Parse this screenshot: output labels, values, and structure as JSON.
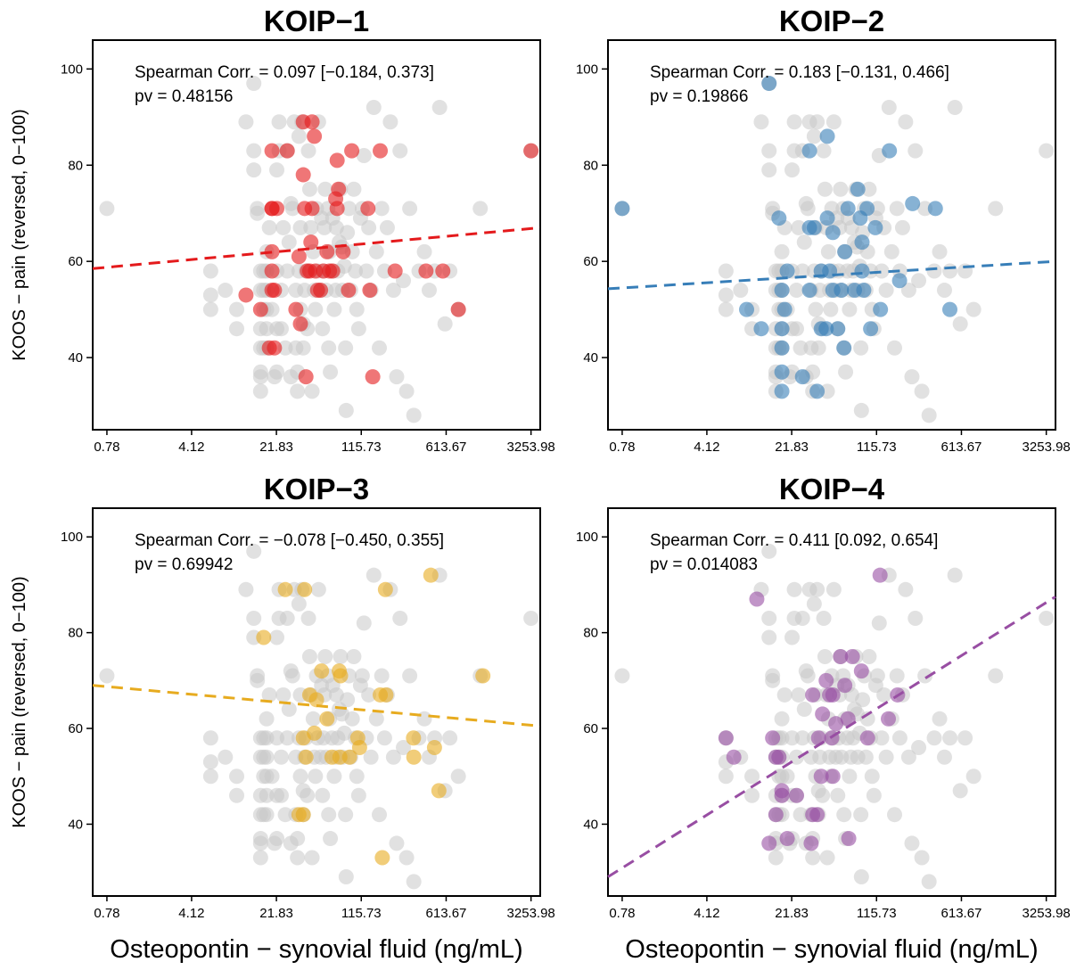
{
  "chart_data": [
    {
      "type": "scatter",
      "title": "KOIP−1",
      "color": "#e41a1c",
      "annotation": {
        "corr": "Spearman Corr. = 0.097 [−0.184, 0.373]",
        "pv": "pv = 0.48156"
      },
      "highlight": [
        [
          12,
          53
        ],
        [
          16,
          50
        ],
        [
          19,
          42
        ],
        [
          20,
          54
        ],
        [
          20,
          71
        ],
        [
          21,
          54
        ],
        [
          20,
          58
        ],
        [
          20,
          62
        ],
        [
          20,
          71
        ],
        [
          21,
          42
        ],
        [
          22,
          71
        ],
        [
          20,
          83
        ],
        [
          27,
          83
        ],
        [
          32,
          50
        ],
        [
          34,
          61
        ],
        [
          35,
          47
        ],
        [
          37,
          78
        ],
        [
          37,
          89
        ],
        [
          38,
          71
        ],
        [
          40,
          58
        ],
        [
          39,
          36
        ],
        [
          42,
          58
        ],
        [
          43,
          64
        ],
        [
          44,
          71
        ],
        [
          44,
          89
        ],
        [
          46,
          86
        ],
        [
          47,
          58
        ],
        [
          49,
          54
        ],
        [
          52,
          54
        ],
        [
          55,
          58
        ],
        [
          59,
          62
        ],
        [
          62,
          58
        ],
        [
          66,
          58
        ],
        [
          70,
          73
        ],
        [
          72,
          71
        ],
        [
          74,
          75
        ],
        [
          72,
          81
        ],
        [
          81,
          62
        ],
        [
          90,
          54
        ],
        [
          96,
          83
        ],
        [
          132,
          71
        ],
        [
          137,
          54
        ],
        [
          145,
          36
        ],
        [
          168,
          83
        ],
        [
          225,
          58
        ],
        [
          413,
          58
        ],
        [
          575,
          58
        ],
        [
          780,
          50
        ],
        [
          3253,
          83
        ]
      ]
    },
    {
      "type": "scatter",
      "title": "KOIP−2",
      "color": "#377eb8",
      "annotation": {
        "corr": "Spearman Corr. = 0.183 [−0.131, 0.466]",
        "pv": "pv = 0.19866"
      },
      "highlight": [
        [
          0.78,
          71
        ],
        [
          9,
          50
        ],
        [
          12,
          46
        ],
        [
          14,
          97
        ],
        [
          17,
          69
        ],
        [
          18,
          54
        ],
        [
          18,
          42
        ],
        [
          18,
          46
        ],
        [
          18,
          37
        ],
        [
          18,
          33
        ],
        [
          19,
          50
        ],
        [
          20,
          58
        ],
        [
          27,
          36
        ],
        [
          31,
          83
        ],
        [
          31,
          67
        ],
        [
          31,
          54
        ],
        [
          34,
          67
        ],
        [
          36,
          33
        ],
        [
          39,
          58
        ],
        [
          39,
          46
        ],
        [
          43,
          46
        ],
        [
          44,
          69
        ],
        [
          44,
          86
        ],
        [
          46,
          58
        ],
        [
          49,
          54
        ],
        [
          49,
          66
        ],
        [
          54,
          46
        ],
        [
          58,
          54
        ],
        [
          61,
          42
        ],
        [
          62,
          62
        ],
        [
          66,
          71
        ],
        [
          75,
          54
        ],
        [
          80,
          75
        ],
        [
          84,
          69
        ],
        [
          87,
          58
        ],
        [
          87,
          64
        ],
        [
          90,
          54
        ],
        [
          96,
          71
        ],
        [
          103,
          46
        ],
        [
          113,
          67
        ],
        [
          125,
          50
        ],
        [
          149,
          83
        ],
        [
          182,
          56
        ],
        [
          235,
          72
        ],
        [
          368,
          71
        ],
        [
          489,
          50
        ]
      ]
    },
    {
      "type": "scatter",
      "title": "KOIP−3",
      "color": "#e7ab1f",
      "annotation": {
        "corr": "Spearman Corr. = −0.078 [−0.450, 0.355]",
        "pv": "pv = 0.69942"
      },
      "highlight": [
        [
          17,
          79
        ],
        [
          26,
          89
        ],
        [
          34,
          42
        ],
        [
          37,
          42
        ],
        [
          37,
          58
        ],
        [
          38,
          89
        ],
        [
          39,
          54
        ],
        [
          42,
          67
        ],
        [
          46,
          59
        ],
        [
          48,
          66
        ],
        [
          53,
          72
        ],
        [
          59,
          62
        ],
        [
          65,
          54
        ],
        [
          75,
          72
        ],
        [
          76,
          54
        ],
        [
          77,
          71
        ],
        [
          92,
          54
        ],
        [
          108,
          58
        ],
        [
          112,
          56
        ],
        [
          168,
          67
        ],
        [
          175,
          33
        ],
        [
          186,
          89
        ],
        [
          188,
          67
        ],
        [
          323,
          58
        ],
        [
          325,
          54
        ],
        [
          454,
          92
        ],
        [
          488,
          56
        ],
        [
          532,
          47
        ],
        [
          1264,
          71
        ]
      ]
    },
    {
      "type": "scatter",
      "title": "KOIP−4",
      "color": "#984ea3",
      "annotation": {
        "corr": "Spearman Corr. = 0.411 [0.092, 0.654]",
        "pv": "pv = 0.014083"
      },
      "highlight": [
        [
          6,
          58
        ],
        [
          7,
          54
        ],
        [
          11,
          87
        ],
        [
          14,
          36
        ],
        [
          15,
          58
        ],
        [
          16,
          54
        ],
        [
          16,
          42
        ],
        [
          17,
          54
        ],
        [
          18,
          47
        ],
        [
          18,
          46
        ],
        [
          20,
          37
        ],
        [
          24,
          46
        ],
        [
          32,
          36
        ],
        [
          33,
          67
        ],
        [
          33,
          42
        ],
        [
          36,
          42
        ],
        [
          37,
          58
        ],
        [
          39,
          50
        ],
        [
          40,
          63
        ],
        [
          43,
          70
        ],
        [
          46,
          67
        ],
        [
          48,
          58
        ],
        [
          49,
          67
        ],
        [
          49,
          50
        ],
        [
          52,
          61
        ],
        [
          57,
          75
        ],
        [
          62,
          69
        ],
        [
          66,
          62
        ],
        [
          67,
          37
        ],
        [
          72,
          75
        ],
        [
          86,
          72
        ],
        [
          97,
          58
        ],
        [
          124,
          92
        ],
        [
          146,
          62
        ],
        [
          175,
          67
        ]
      ]
    }
  ],
  "background_points": [
    [
      0.78,
      71
    ],
    [
      6,
      58
    ],
    [
      6,
      53
    ],
    [
      6,
      50
    ],
    [
      8,
      54
    ],
    [
      10,
      46
    ],
    [
      10,
      50
    ],
    [
      12,
      89
    ],
    [
      14,
      97
    ],
    [
      14,
      79
    ],
    [
      14,
      83
    ],
    [
      15,
      71
    ],
    [
      15,
      70
    ],
    [
      16,
      58
    ],
    [
      16,
      54
    ],
    [
      16,
      46
    ],
    [
      16,
      42
    ],
    [
      16,
      37
    ],
    [
      16,
      36
    ],
    [
      16,
      33
    ],
    [
      17,
      58
    ],
    [
      17,
      54
    ],
    [
      17,
      50
    ],
    [
      17,
      42
    ],
    [
      18,
      62
    ],
    [
      18,
      58
    ],
    [
      18,
      54
    ],
    [
      18,
      50
    ],
    [
      18,
      46
    ],
    [
      18,
      42
    ],
    [
      19,
      67
    ],
    [
      20,
      50
    ],
    [
      21,
      36
    ],
    [
      22,
      37
    ],
    [
      22,
      46
    ],
    [
      22,
      58
    ],
    [
      22,
      79
    ],
    [
      23,
      83
    ],
    [
      23,
      89
    ],
    [
      24,
      54
    ],
    [
      24,
      46
    ],
    [
      25,
      67
    ],
    [
      26,
      42
    ],
    [
      27,
      58
    ],
    [
      27,
      83
    ],
    [
      28,
      64
    ],
    [
      29,
      36
    ],
    [
      29,
      72
    ],
    [
      30,
      71
    ],
    [
      31,
      89
    ],
    [
      32,
      54
    ],
    [
      32,
      42
    ],
    [
      33,
      37
    ],
    [
      33,
      33
    ],
    [
      34,
      58
    ],
    [
      34,
      86
    ],
    [
      35,
      50
    ],
    [
      35,
      67
    ],
    [
      36,
      89
    ],
    [
      37,
      42
    ],
    [
      37,
      47
    ],
    [
      38,
      54
    ],
    [
      39,
      58
    ],
    [
      40,
      46
    ],
    [
      41,
      83
    ],
    [
      42,
      75
    ],
    [
      43,
      67
    ],
    [
      44,
      33
    ],
    [
      45,
      62
    ],
    [
      46,
      54
    ],
    [
      47,
      50
    ],
    [
      48,
      71
    ],
    [
      49,
      58
    ],
    [
      50,
      89
    ],
    [
      52,
      54
    ],
    [
      53,
      69
    ],
    [
      54,
      46
    ],
    [
      55,
      58
    ],
    [
      56,
      67
    ],
    [
      57,
      75
    ],
    [
      58,
      54
    ],
    [
      60,
      71
    ],
    [
      61,
      42
    ],
    [
      62,
      62
    ],
    [
      63,
      37
    ],
    [
      65,
      58
    ],
    [
      66,
      69
    ],
    [
      68,
      50
    ],
    [
      70,
      54
    ],
    [
      71,
      67
    ],
    [
      73,
      58
    ],
    [
      75,
      64
    ],
    [
      77,
      75
    ],
    [
      79,
      63
    ],
    [
      80,
      54
    ],
    [
      83,
      59
    ],
    [
      85,
      42
    ],
    [
      86,
      29
    ],
    [
      88,
      66
    ],
    [
      91,
      71
    ],
    [
      94,
      54
    ],
    [
      97,
      62
    ],
    [
      100,
      75
    ],
    [
      103,
      58
    ],
    [
      106,
      50
    ],
    [
      110,
      46
    ],
    [
      114,
      69
    ],
    [
      118,
      71
    ],
    [
      122,
      82
    ],
    [
      128,
      58
    ],
    [
      134,
      67
    ],
    [
      140,
      54
    ],
    [
      148,
      92
    ],
    [
      156,
      62
    ],
    [
      165,
      42
    ],
    [
      173,
      71
    ],
    [
      183,
      58
    ],
    [
      193,
      67
    ],
    [
      205,
      89
    ],
    [
      218,
      54
    ],
    [
      232,
      36
    ],
    [
      248,
      83
    ],
    [
      265,
      56
    ],
    [
      282,
      33
    ],
    [
      300,
      71
    ],
    [
      325,
      28
    ],
    [
      360,
      58
    ],
    [
      400,
      62
    ],
    [
      440,
      54
    ],
    [
      490,
      58
    ],
    [
      540,
      92
    ],
    [
      600,
      47
    ],
    [
      660,
      58
    ],
    [
      780,
      50
    ],
    [
      1200,
      71
    ],
    [
      3253,
      83
    ]
  ],
  "x_ticks": [
    "0.78",
    "4.12",
    "21.83",
    "115.73",
    "613.67",
    "3253.98"
  ],
  "x_tick_values": [
    0.78,
    4.12,
    21.83,
    115.73,
    613.67,
    3253.98
  ],
  "y_ticks": [
    "40",
    "60",
    "80",
    "100"
  ],
  "y_tick_values": [
    40,
    60,
    80,
    100
  ],
  "xlim": [
    0.59,
    3900
  ],
  "ylim": [
    25,
    106
  ],
  "xlabel": "Osteopontin − synovial fluid (ng/mL)",
  "ylabel": "KOOS − pain (reversed, 0−100)",
  "x_scale": "log",
  "background_color": "#c8c8c8",
  "trend_lines": [
    {
      "x": [
        0.59,
        3900
      ],
      "y": [
        58.5,
        67.0
      ]
    },
    {
      "x": [
        0.59,
        3900
      ],
      "y": [
        54.3,
        60.0
      ]
    },
    {
      "x": [
        0.59,
        3900
      ],
      "y": [
        69.0,
        60.5
      ]
    },
    {
      "x": [
        0.59,
        3900
      ],
      "y": [
        29.0,
        87.5
      ]
    }
  ]
}
